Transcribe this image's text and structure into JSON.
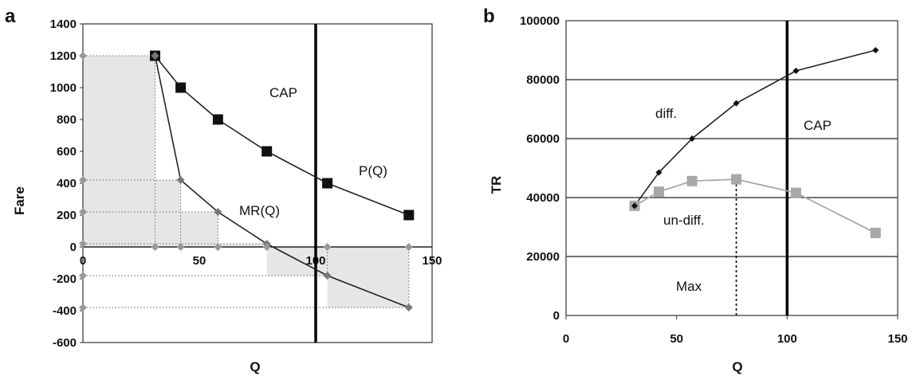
{
  "chart_data": [
    {
      "panel_label": "a",
      "type": "line",
      "xlabel": "Q",
      "ylabel": "Fare",
      "xlim": [
        0,
        150
      ],
      "ylim": [
        -600,
        1400
      ],
      "x_ticks": [
        0,
        50,
        100,
        150
      ],
      "y_ticks": [
        1400,
        1200,
        1000,
        800,
        600,
        400,
        200,
        0,
        -200,
        -400,
        -600
      ],
      "grid": false,
      "cap_x": 100,
      "annotations": {
        "cap": "CAP",
        "p_curve": "P(Q)",
        "mr_curve": "MR(Q)"
      },
      "series": [
        {
          "name": "P(Q)",
          "marker": "square",
          "x": [
            31,
            42,
            58,
            79,
            105,
            140
          ],
          "y": [
            1200,
            1000,
            800,
            600,
            400,
            200
          ]
        },
        {
          "name": "MR(Q)",
          "marker": "diamond",
          "x": [
            31,
            42,
            58,
            79,
            105,
            140
          ],
          "y": [
            1200,
            420,
            220,
            20,
            -180,
            -380
          ]
        }
      ],
      "axis_markers": {
        "y_axis": [
          1200,
          420,
          220,
          20,
          -180,
          -380
        ],
        "x_axis": [
          31,
          42,
          58,
          79,
          105,
          140
        ]
      }
    },
    {
      "panel_label": "b",
      "type": "line",
      "xlabel": "Q",
      "ylabel": "TR",
      "xlim": [
        0,
        150
      ],
      "ylim": [
        0,
        100000
      ],
      "x_ticks": [
        0,
        50,
        100,
        150
      ],
      "y_ticks": [
        100000,
        80000,
        60000,
        40000,
        20000,
        0
      ],
      "grid": true,
      "cap_x": 100,
      "max_x": 77,
      "annotations": {
        "cap": "CAP",
        "max": "Max",
        "diff": "diff.",
        "undiff": "un-diff."
      },
      "series": [
        {
          "name": "diff.",
          "marker": "diamond",
          "x": [
            31,
            42,
            57,
            77,
            104,
            140
          ],
          "y": [
            37200,
            48500,
            60000,
            72000,
            83000,
            90000
          ]
        },
        {
          "name": "un-diff.",
          "marker": "square",
          "x": [
            31,
            42,
            57,
            77,
            104,
            140
          ],
          "y": [
            37200,
            42000,
            45600,
            46200,
            41600,
            28000
          ]
        }
      ]
    }
  ]
}
